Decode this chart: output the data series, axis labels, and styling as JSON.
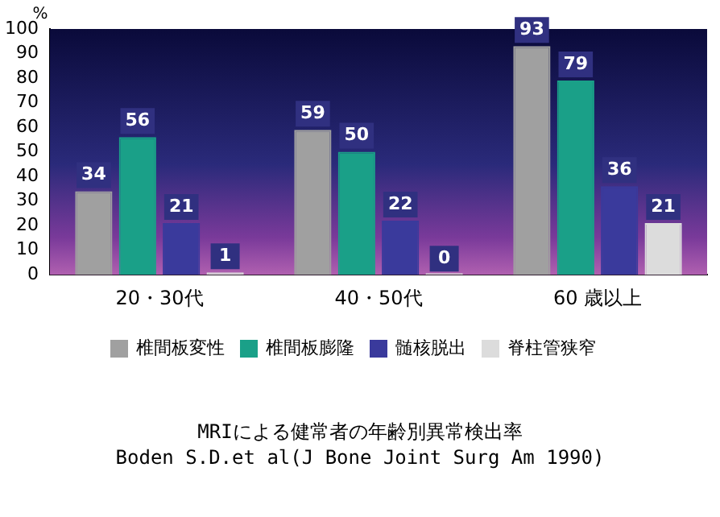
{
  "chart_data": {
    "type": "bar",
    "title": "MRIによる健常者の年齢別異常検出率",
    "ylabel": "%",
    "annotations": [
      "Boden S.D.et al(J Bone Joint Surg Am 1990)"
    ],
    "categories": [
      "20・30代",
      "40・50代",
      "60 歳以上"
    ],
    "series": [
      {
        "name": "椎間板変性",
        "color": "#a0a0a0",
        "values": [
          34,
          59,
          93
        ]
      },
      {
        "name": "椎間板膨隆",
        "color": "#1aa088",
        "values": [
          56,
          50,
          79
        ]
      },
      {
        "name": "髄核脱出",
        "color": "#3a3a9c",
        "values": [
          21,
          22,
          36
        ]
      },
      {
        "name": "脊柱管狭窄",
        "color": "#dcdcdc",
        "values": [
          1,
          0,
          21
        ]
      }
    ],
    "ylim": [
      0,
      100
    ],
    "yticks": [
      0,
      10,
      20,
      30,
      40,
      50,
      60,
      70,
      80,
      90,
      100
    ],
    "grid": false,
    "legend": "bottom",
    "data_labels": true
  }
}
